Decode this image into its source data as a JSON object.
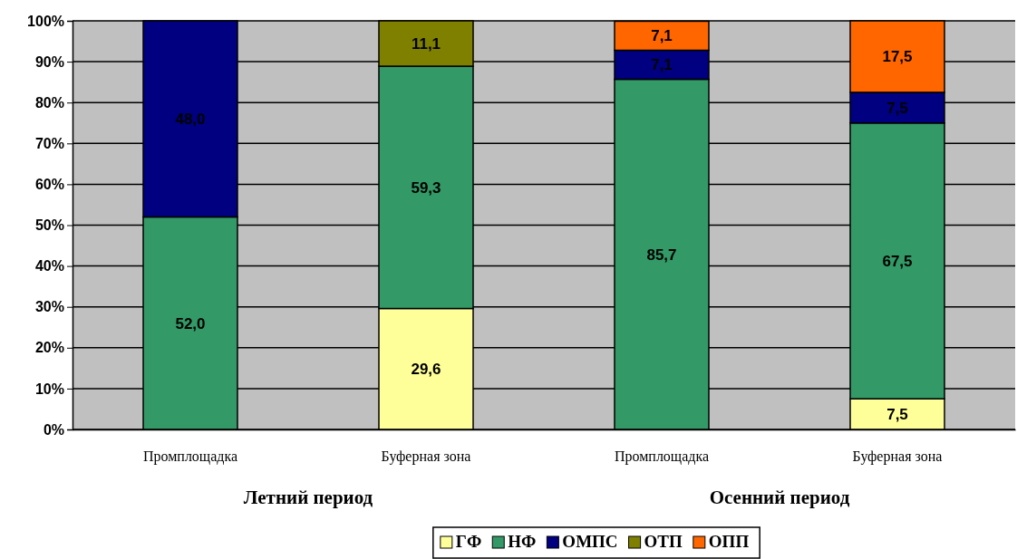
{
  "chart_data": {
    "type": "bar",
    "stacked": true,
    "categories": [
      "Промплощадка",
      "Буферная зона",
      "Промплощадка",
      "Буферная зона"
    ],
    "series": [
      {
        "name": "ГФ",
        "color": "#ffff99",
        "values": [
          null,
          29.6,
          null,
          7.5
        ],
        "value_labels": [
          null,
          "29,6",
          null,
          "7,5"
        ]
      },
      {
        "name": "НФ",
        "color": "#339966",
        "values": [
          52.0,
          59.3,
          85.7,
          67.5
        ],
        "value_labels": [
          "52,0",
          "59,3",
          "85,7",
          "67,5"
        ]
      },
      {
        "name": "ОМПС",
        "color": "#000080",
        "values": [
          48.0,
          null,
          7.1,
          7.5
        ],
        "value_labels": [
          "48,0",
          null,
          "7,1",
          "7,5"
        ]
      },
      {
        "name": "ОТП",
        "color": "#808000",
        "values": [
          null,
          11.1,
          null,
          null
        ],
        "value_labels": [
          null,
          "11,1",
          null,
          null
        ]
      },
      {
        "name": "ОПП",
        "color": "#ff6600",
        "values": [
          null,
          null,
          7.1,
          17.5
        ],
        "value_labels": [
          null,
          null,
          "7,1",
          "17,5"
        ]
      }
    ],
    "ylim": [
      0,
      100
    ],
    "yticks": [
      {
        "value": 0,
        "label": "0%"
      },
      {
        "value": 10,
        "label": "10%"
      },
      {
        "value": 20,
        "label": "20%"
      },
      {
        "value": 30,
        "label": "30%"
      },
      {
        "value": 40,
        "label": "40%"
      },
      {
        "value": 50,
        "label": "50%"
      },
      {
        "value": 60,
        "label": "60%"
      },
      {
        "value": 70,
        "label": "70%"
      },
      {
        "value": 80,
        "label": "80%"
      },
      {
        "value": 90,
        "label": "90%"
      },
      {
        "value": 100,
        "label": "100%"
      }
    ],
    "grid": "y",
    "legend": "bottom",
    "annotations": [
      "Летний период",
      "Осенний период"
    ]
  }
}
